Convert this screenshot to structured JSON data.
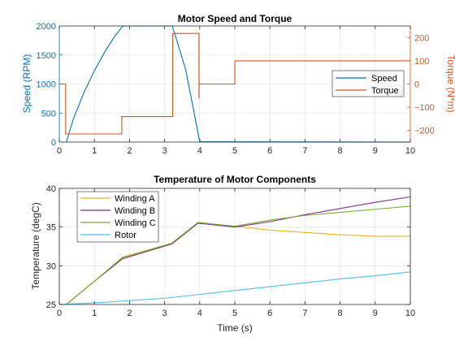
{
  "chart_data": [
    {
      "type": "line",
      "title": "Motor Speed and Torque",
      "xlabel": "",
      "xlim": [
        0,
        10
      ],
      "xticks": [
        0,
        1,
        2,
        3,
        4,
        5,
        6,
        7,
        8,
        9,
        10
      ],
      "ylabel_left": "Speed (RPM)",
      "ylim_left": [
        0,
        2000
      ],
      "yticks_left": [
        0,
        500,
        1000,
        1500,
        2000
      ],
      "ylabel_right": "Torque (N*m)",
      "ylim_right": [
        -250,
        250
      ],
      "yticks_right": [
        -200,
        -100,
        0,
        100,
        200
      ],
      "grid": true,
      "legend": "right",
      "series": [
        {
          "name": "Speed",
          "axis": "left",
          "color": "#0072BD",
          "points": [
            [
              0.2,
              0
            ],
            [
              0.4,
              400
            ],
            [
              0.7,
              850
            ],
            [
              1.0,
              1230
            ],
            [
              1.3,
              1560
            ],
            [
              1.6,
              1840
            ],
            [
              1.78,
              1980
            ],
            [
              1.83,
              2000
            ],
            [
              3.22,
              2000
            ],
            [
              3.6,
              1250
            ],
            [
              3.9,
              320
            ],
            [
              3.98,
              60
            ],
            [
              4.02,
              5
            ],
            [
              10.0,
              0
            ]
          ]
        },
        {
          "name": "Torque",
          "axis": "right",
          "color": "#D95319",
          "points": [
            [
              0,
              0
            ],
            [
              0.18,
              0
            ],
            [
              0.18,
              -215
            ],
            [
              1.78,
              -215
            ],
            [
              1.78,
              -160
            ],
            [
              1.78,
              -140
            ],
            [
              3.23,
              -140
            ],
            [
              3.23,
              210
            ],
            [
              3.23,
              218
            ],
            [
              3.98,
              218
            ],
            [
              3.98,
              0
            ],
            [
              3.98,
              -60
            ],
            [
              3.98,
              0
            ],
            [
              5.0,
              0
            ],
            [
              5.0,
              30
            ],
            [
              5.0,
              100
            ],
            [
              10.0,
              100
            ]
          ]
        }
      ]
    },
    {
      "type": "line",
      "title": "Temperature of Motor Components",
      "xlabel": "Time (s)",
      "ylabel": "Temperature (degC)",
      "xlim": [
        0,
        10
      ],
      "xticks": [
        0,
        1,
        2,
        3,
        4,
        5,
        6,
        7,
        8,
        9,
        10
      ],
      "ylim": [
        25,
        40
      ],
      "yticks": [
        25,
        30,
        35,
        40
      ],
      "grid": true,
      "legend": "top-left",
      "series": [
        {
          "name": "Winding A",
          "color": "#EDB120",
          "points": [
            [
              0,
              25
            ],
            [
              0.2,
              25
            ],
            [
              1.0,
              28.0
            ],
            [
              1.8,
              31.0
            ],
            [
              3.2,
              32.8
            ],
            [
              3.95,
              35.5
            ],
            [
              5.0,
              35.1
            ],
            [
              6.0,
              34.6
            ],
            [
              7.0,
              34.3
            ],
            [
              8.0,
              34.0
            ],
            [
              9.0,
              33.8
            ],
            [
              10.0,
              33.8
            ]
          ]
        },
        {
          "name": "Winding B",
          "color": "#7E2F8E",
          "points": [
            [
              0,
              25
            ],
            [
              0.2,
              25
            ],
            [
              1.0,
              28.0
            ],
            [
              1.8,
              30.9
            ],
            [
              3.2,
              32.8
            ],
            [
              3.95,
              35.5
            ],
            [
              5.0,
              35.0
            ],
            [
              6.0,
              35.7
            ],
            [
              7.0,
              36.6
            ],
            [
              8.0,
              37.4
            ],
            [
              9.0,
              38.2
            ],
            [
              10.0,
              38.9
            ]
          ]
        },
        {
          "name": "Winding C",
          "color": "#77AC30",
          "points": [
            [
              0,
              25
            ],
            [
              0.2,
              25
            ],
            [
              1.0,
              28.0
            ],
            [
              1.8,
              31.1
            ],
            [
              3.2,
              32.9
            ],
            [
              3.95,
              35.6
            ],
            [
              5.0,
              35.1
            ],
            [
              6.0,
              35.9
            ],
            [
              7.0,
              36.5
            ],
            [
              8.0,
              36.9
            ],
            [
              9.0,
              37.3
            ],
            [
              10.0,
              37.7
            ]
          ]
        },
        {
          "name": "Rotor",
          "color": "#4DBEEE",
          "points": [
            [
              0,
              25
            ],
            [
              1.0,
              25.2
            ],
            [
              2.0,
              25.5
            ],
            [
              3.0,
              25.8
            ],
            [
              4.0,
              26.3
            ],
            [
              5.0,
              26.8
            ],
            [
              6.0,
              27.3
            ],
            [
              7.0,
              27.8
            ],
            [
              8.0,
              28.3
            ],
            [
              9.0,
              28.7
            ],
            [
              10.0,
              29.2
            ]
          ]
        }
      ]
    }
  ]
}
